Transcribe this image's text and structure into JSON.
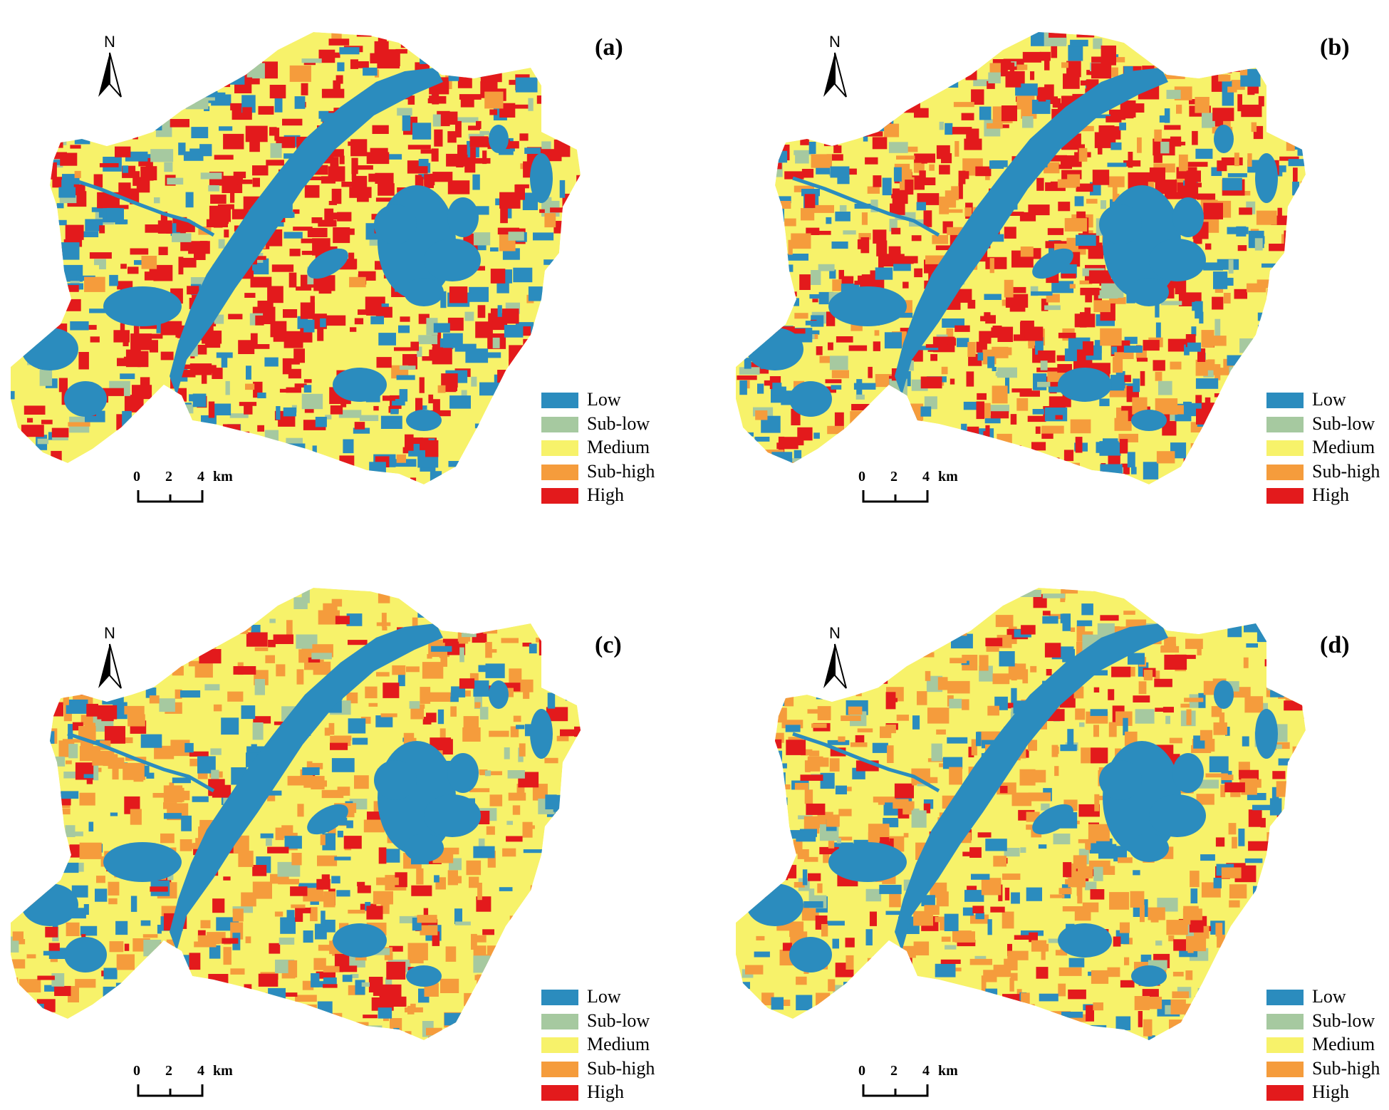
{
  "classes": [
    {
      "key": "low",
      "label": "Low",
      "color": "#2b8cbe"
    },
    {
      "key": "sublow",
      "label": "Sub-low",
      "color": "#a6c9a0"
    },
    {
      "key": "medium",
      "label": "Medium",
      "color": "#f7f26a"
    },
    {
      "key": "subhigh",
      "label": "Sub-high",
      "color": "#f59c3c"
    },
    {
      "key": "high",
      "label": "High",
      "color": "#e31a1c"
    }
  ],
  "north_letter": "N",
  "scalebar": {
    "ticks": [
      "0",
      "2",
      "4"
    ],
    "unit": "km"
  },
  "panels": [
    {
      "label": "(a)",
      "mix": [
        22,
        8,
        38,
        2,
        30
      ]
    },
    {
      "label": "(b)",
      "mix": [
        22,
        8,
        26,
        18,
        26
      ]
    },
    {
      "label": "(c)",
      "mix": [
        14,
        6,
        38,
        32,
        10
      ]
    },
    {
      "label": "(d)",
      "mix": [
        14,
        6,
        38,
        30,
        12
      ]
    }
  ]
}
